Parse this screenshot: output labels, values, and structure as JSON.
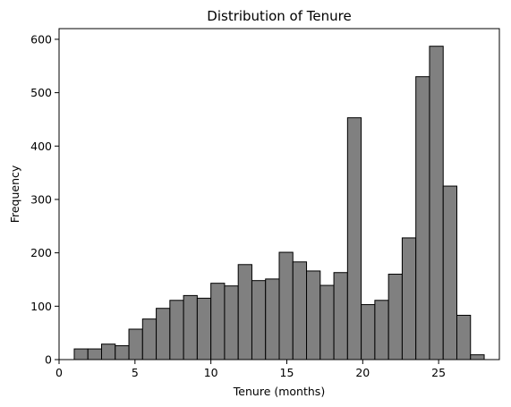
{
  "chart_data": {
    "type": "bar",
    "title": "Distribution of Tenure",
    "xlabel": "Tenure (months)",
    "ylabel": "Frequency",
    "xlim": [
      0,
      29
    ],
    "ylim": [
      0,
      620
    ],
    "xticks": [
      0,
      5,
      10,
      15,
      20,
      25
    ],
    "yticks": [
      0,
      100,
      200,
      300,
      400,
      500,
      600
    ],
    "bin_start": 1,
    "bin_width": 0.9,
    "values": [
      20,
      20,
      29,
      26,
      57,
      76,
      96,
      111,
      120,
      115,
      143,
      138,
      178,
      148,
      151,
      201,
      183,
      166,
      139,
      163,
      453,
      103,
      111,
      160,
      228,
      530,
      587,
      325,
      83,
      9
    ],
    "bar_color": "#808080",
    "edge_color": "#000000",
    "grid": false,
    "legend": "none"
  }
}
